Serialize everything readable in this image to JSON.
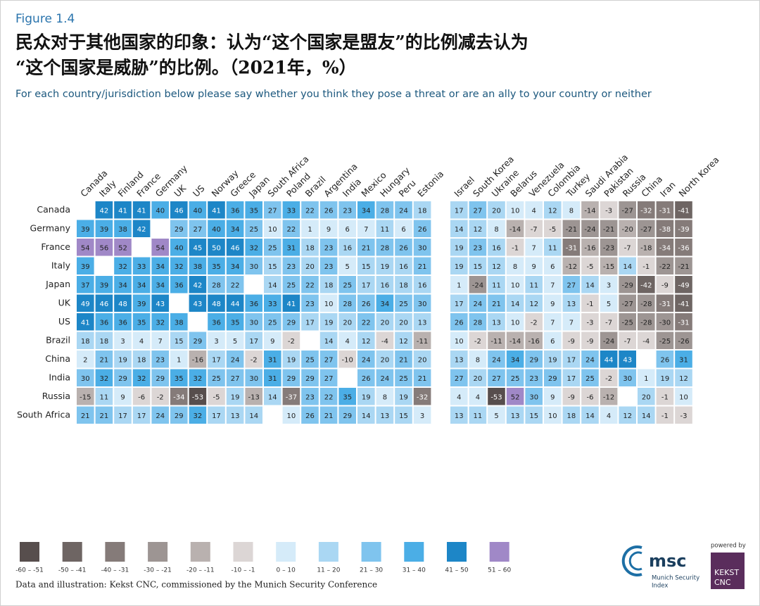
{
  "chart_data": {
    "type": "heatmap",
    "figure_label": "Figure 1.4",
    "title_lines": [
      "民众对于其他国家的印象：认为“这个国家是盟友”的比例减去认为",
      "“这个国家是威胁”的比例。（2021年，%）"
    ],
    "subtitle": "For each country/jurisdiction below please say whether you think they pose a threat or are an ally to your country or neither",
    "rows": [
      "Canada",
      "Germany",
      "France",
      "Italy",
      "Japan",
      "UK",
      "US",
      "Brazil",
      "China",
      "India",
      "Russia",
      "South Africa"
    ],
    "column_groups": [
      {
        "columns": [
          "Canada",
          "Italy",
          "Finland",
          "France",
          "Germany",
          "UK",
          "US",
          "Norway",
          "Greece",
          "Japan",
          "South Africa",
          "Poland",
          "Brazil",
          "Argentina",
          "India",
          "Mexico",
          "Hungary",
          "Peru",
          "Estonia"
        ],
        "values": [
          [
            null,
            42,
            41,
            41,
            40,
            46,
            40,
            41,
            36,
            35,
            27,
            33,
            22,
            26,
            23,
            34,
            28,
            24,
            18
          ],
          [
            39,
            39,
            38,
            42,
            null,
            29,
            27,
            40,
            34,
            25,
            10,
            22,
            1,
            9,
            6,
            7,
            11,
            6,
            26
          ],
          [
            54,
            56,
            52,
            null,
            54,
            40,
            45,
            50,
            46,
            32,
            25,
            31,
            18,
            23,
            16,
            21,
            28,
            26,
            30
          ],
          [
            39,
            null,
            32,
            33,
            34,
            32,
            38,
            35,
            34,
            30,
            15,
            23,
            20,
            23,
            5,
            15,
            19,
            16,
            21
          ],
          [
            37,
            39,
            34,
            34,
            34,
            36,
            42,
            28,
            22,
            null,
            14,
            25,
            22,
            18,
            25,
            17,
            16,
            18,
            16
          ],
          [
            49,
            46,
            48,
            39,
            43,
            null,
            43,
            48,
            44,
            36,
            33,
            41,
            23,
            10,
            28,
            26,
            34,
            25,
            30
          ],
          [
            41,
            36,
            36,
            35,
            32,
            38,
            null,
            36,
            35,
            30,
            25,
            29,
            17,
            19,
            20,
            22,
            20,
            20,
            13
          ],
          [
            18,
            18,
            3,
            4,
            7,
            15,
            29,
            3,
            5,
            17,
            9,
            -2,
            null,
            14,
            4,
            12,
            -4,
            12,
            -11
          ],
          [
            2,
            21,
            19,
            18,
            23,
            1,
            -16,
            17,
            24,
            -2,
            31,
            19,
            25,
            27,
            -10,
            24,
            20,
            21,
            20
          ],
          [
            30,
            32,
            29,
            32,
            29,
            35,
            32,
            25,
            27,
            30,
            31,
            29,
            29,
            27,
            null,
            26,
            24,
            25,
            21
          ],
          [
            -15,
            11,
            9,
            -6,
            -2,
            -34,
            -53,
            -5,
            19,
            -13,
            14,
            -37,
            23,
            22,
            35,
            19,
            8,
            19,
            -32
          ],
          [
            21,
            21,
            17,
            17,
            24,
            29,
            32,
            17,
            13,
            14,
            null,
            10,
            26,
            21,
            29,
            14,
            13,
            15,
            3
          ]
        ]
      },
      {
        "columns": [
          "Israel",
          "South Korea",
          "Ukraine",
          "Belarus",
          "Venezuela",
          "Colombia",
          "Turkey",
          "Saudi Arabia",
          "Pakistan",
          "Russia",
          "China",
          "Iran",
          "North Korea"
        ],
        "values": [
          [
            17,
            27,
            20,
            10,
            4,
            12,
            8,
            -14,
            -3,
            -27,
            -32,
            -31,
            -41
          ],
          [
            14,
            12,
            8,
            -14,
            -7,
            -5,
            -21,
            -24,
            -21,
            -20,
            -27,
            -38,
            -39
          ],
          [
            19,
            23,
            16,
            -1,
            7,
            11,
            -31,
            -16,
            -23,
            -7,
            -18,
            -34,
            -36
          ],
          [
            19,
            15,
            12,
            8,
            9,
            6,
            -12,
            -5,
            -15,
            14,
            -1,
            -22,
            -21
          ],
          [
            1,
            -24,
            11,
            10,
            11,
            7,
            27,
            14,
            3,
            -29,
            -42,
            -9,
            -49
          ],
          [
            17,
            24,
            21,
            14,
            12,
            9,
            13,
            -1,
            5,
            -27,
            -28,
            -31,
            -41
          ],
          [
            26,
            28,
            13,
            10,
            -2,
            7,
            7,
            -3,
            -7,
            -25,
            -28,
            -30,
            -31
          ],
          [
            10,
            -2,
            -11,
            -14,
            -16,
            6,
            -9,
            -9,
            -24,
            -7,
            -4,
            -25,
            -26
          ],
          [
            13,
            8,
            24,
            34,
            29,
            19,
            17,
            24,
            44,
            43,
            null,
            26,
            31
          ],
          [
            27,
            20,
            27,
            25,
            23,
            29,
            17,
            25,
            -2,
            30,
            1,
            19,
            12
          ],
          [
            4,
            4,
            -53,
            52,
            30,
            9,
            -9,
            -6,
            -12,
            null,
            20,
            -1,
            10
          ],
          [
            13,
            11,
            5,
            13,
            15,
            10,
            18,
            14,
            4,
            12,
            14,
            -1,
            -3
          ]
        ]
      }
    ],
    "legend": [
      {
        "label": "-60 – -51",
        "range": [
          -60,
          -51
        ],
        "color": "#574e4d"
      },
      {
        "label": "-50 – -41",
        "range": [
          -50,
          -41
        ],
        "color": "#6e6563"
      },
      {
        "label": "-40 – -31",
        "range": [
          -40,
          -31
        ],
        "color": "#857b79"
      },
      {
        "label": "-30 – -21",
        "range": [
          -30,
          -21
        ],
        "color": "#9d9593"
      },
      {
        "label": "-20 – -11",
        "range": [
          -20,
          -11
        ],
        "color": "#b9b1af"
      },
      {
        "label": "-10 – -1",
        "range": [
          -10,
          -1
        ],
        "color": "#dcd6d5"
      },
      {
        "label": "0 – 10",
        "range": [
          0,
          10
        ],
        "color": "#d5ebf9"
      },
      {
        "label": "11 – 20",
        "range": [
          11,
          20
        ],
        "color": "#aad7f3"
      },
      {
        "label": "21 – 30",
        "range": [
          21,
          30
        ],
        "color": "#7fc4ee"
      },
      {
        "label": "31 – 40",
        "range": [
          31,
          40
        ],
        "color": "#4baee6"
      },
      {
        "label": "41 – 50",
        "range": [
          41,
          50
        ],
        "color": "#1d86c7"
      },
      {
        "label": "51 – 60",
        "range": [
          51,
          60
        ],
        "color": "#a088c7"
      }
    ],
    "source": "Data and illustration: Kekst CNC, commissioned by the Munich Security Conference",
    "logos": {
      "msc": "msc",
      "msc_sub": [
        "Munich Security",
        "Index"
      ],
      "powered_by": "powered by",
      "kekst": [
        "KEKST",
        "CNC"
      ]
    }
  }
}
